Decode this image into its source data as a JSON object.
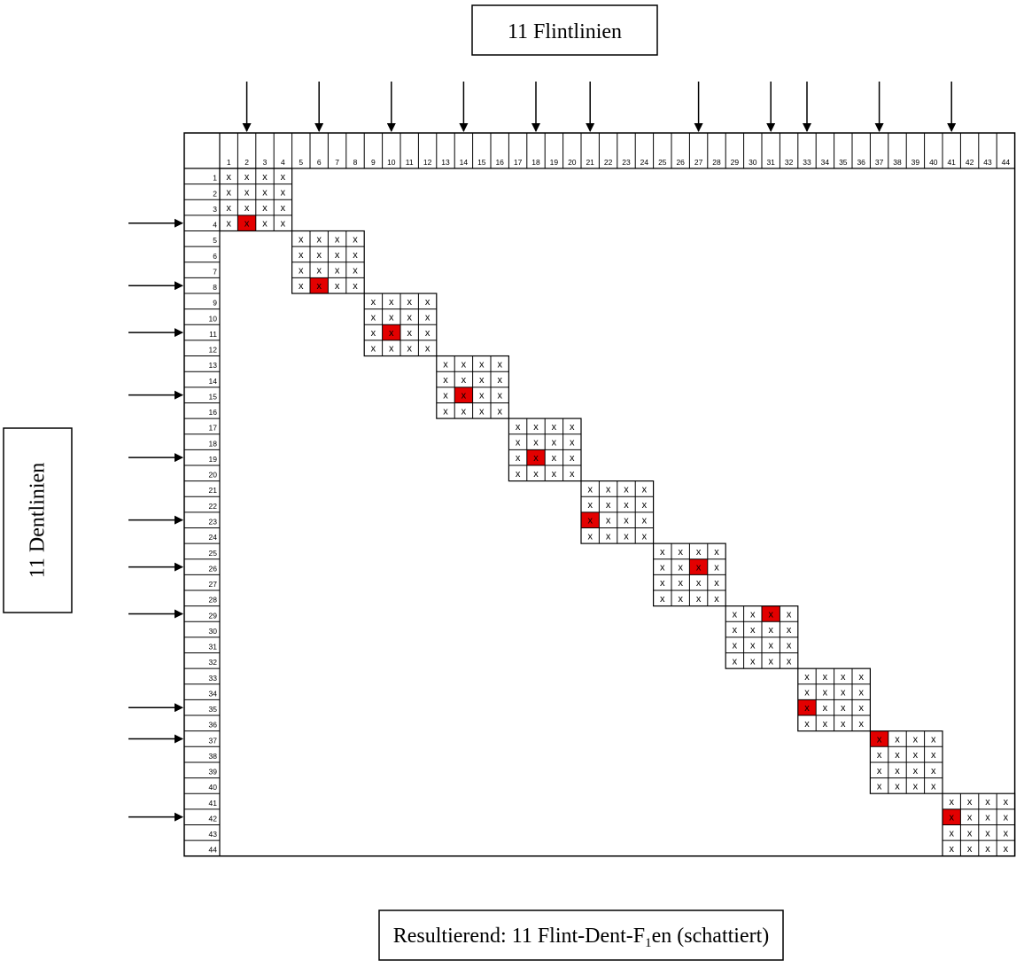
{
  "titles": {
    "flint": "11 Flintlinien",
    "dent": "11 Dentlinien",
    "result_prefix": "Resultierend: 11 Flint-Dent-F",
    "result_sub": "1",
    "result_suffix": "en (schattiert)"
  },
  "grid": {
    "size": 44,
    "block_size": 4,
    "column_labels": [
      "1",
      "2",
      "3",
      "4",
      "5",
      "6",
      "7",
      "8",
      "9",
      "10",
      "11",
      "12",
      "13",
      "14",
      "15",
      "16",
      "17",
      "18",
      "19",
      "20",
      "21",
      "22",
      "23",
      "24",
      "25",
      "26",
      "27",
      "28",
      "29",
      "30",
      "31",
      "32",
      "33",
      "34",
      "35",
      "36",
      "37",
      "38",
      "39",
      "40",
      "41",
      "42",
      "43",
      "44"
    ],
    "row_labels": [
      "1",
      "2",
      "3",
      "4",
      "5",
      "6",
      "7",
      "8",
      "9",
      "10",
      "11",
      "12",
      "13",
      "14",
      "15",
      "16",
      "17",
      "18",
      "19",
      "20",
      "21",
      "22",
      "23",
      "24",
      "25",
      "26",
      "27",
      "28",
      "29",
      "30",
      "31",
      "32",
      "33",
      "34",
      "35",
      "36",
      "37",
      "38",
      "39",
      "40",
      "41",
      "42",
      "43",
      "44"
    ],
    "mark": "x",
    "shade_color": "#e30000",
    "line_color": "#000000"
  },
  "flint_arrow_columns": [
    2,
    6,
    10,
    14,
    18,
    21,
    27,
    31,
    33,
    37,
    41
  ],
  "dent_arrow_rows": [
    4,
    8,
    11,
    15,
    19,
    23,
    26,
    29,
    35,
    37,
    42
  ],
  "shaded_cells": [
    {
      "row": 4,
      "col": 2
    },
    {
      "row": 8,
      "col": 6
    },
    {
      "row": 11,
      "col": 10
    },
    {
      "row": 15,
      "col": 14
    },
    {
      "row": 19,
      "col": 18
    },
    {
      "row": 23,
      "col": 21
    },
    {
      "row": 26,
      "col": 27
    },
    {
      "row": 29,
      "col": 31
    },
    {
      "row": 35,
      "col": 33
    },
    {
      "row": 37,
      "col": 37
    },
    {
      "row": 42,
      "col": 41
    }
  ]
}
